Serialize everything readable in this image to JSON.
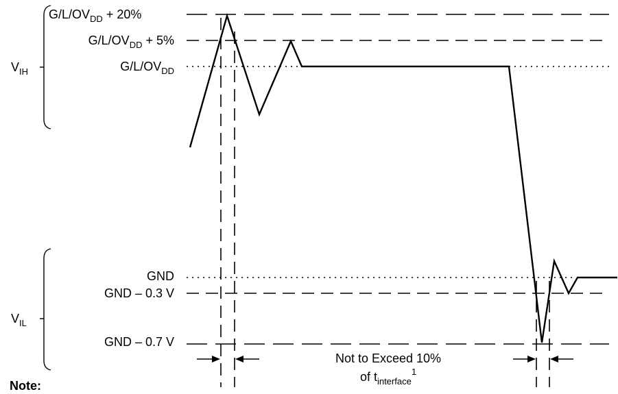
{
  "levels": {
    "vdd_plus_20": {
      "base": "G/L/OV",
      "sub": "DD",
      "tail": " + 20%"
    },
    "vdd_plus_5": {
      "base": "G/L/OV",
      "sub": "DD",
      "tail": " + 5%"
    },
    "vdd": {
      "base": "G/L/OV",
      "sub": "DD"
    },
    "gnd": {
      "text": "GND"
    },
    "gnd_minus_03": {
      "text": "GND – 0.3 V"
    },
    "gnd_minus_07": {
      "text": "GND – 0.7 V"
    }
  },
  "ranges": {
    "vih": {
      "base": "V",
      "sub": "IH"
    },
    "vil": {
      "base": "V",
      "sub": "IL"
    }
  },
  "annotation": {
    "line1": "Not to Exceed 10%",
    "line2_prefix": "of t",
    "line2_sub": "interface",
    "line2_sup": "1"
  },
  "note": "Note:",
  "colors": {
    "ink": "#000000",
    "background": "#ffffff"
  }
}
